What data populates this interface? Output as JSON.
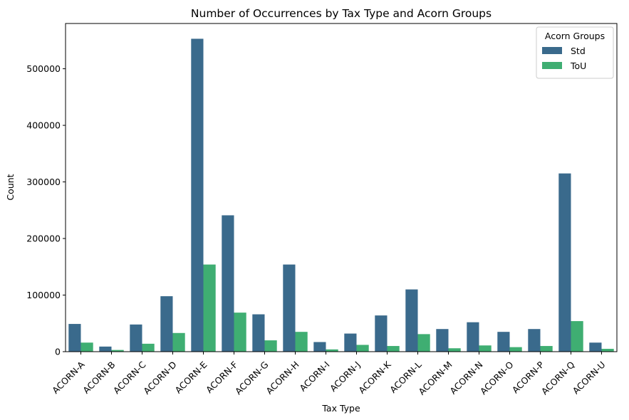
{
  "chart_data": {
    "type": "bar",
    "title": "Number of Occurrences by Tax Type and Acorn Groups",
    "xlabel": "Tax Type",
    "ylabel": "Count",
    "ylim": [
      0,
      580000
    ],
    "yticks": [
      0,
      100000,
      200000,
      300000,
      400000,
      500000
    ],
    "grid": false,
    "legend": {
      "title": "Acorn Groups",
      "placement": "top-right"
    },
    "categories": [
      "ACORN-A",
      "ACORN-B",
      "ACORN-C",
      "ACORN-D",
      "ACORN-E",
      "ACORN-F",
      "ACORN-G",
      "ACORN-H",
      "ACORN-I",
      "ACORN-J",
      "ACORN-K",
      "ACORN-L",
      "ACORN-M",
      "ACORN-N",
      "ACORN-O",
      "ACORN-P",
      "ACORN-Q",
      "ACORN-U"
    ],
    "series": [
      {
        "name": "Std",
        "color": "#3a6a8c",
        "values": [
          49000,
          9000,
          48000,
          98000,
          553000,
          241000,
          66000,
          154000,
          17000,
          32000,
          64000,
          110000,
          40000,
          52000,
          35000,
          40000,
          315000,
          16000
        ]
      },
      {
        "name": "ToU",
        "color": "#3fae72",
        "values": [
          16000,
          3000,
          14000,
          33000,
          154000,
          69000,
          20000,
          35000,
          4000,
          12000,
          10000,
          31000,
          6000,
          11000,
          8000,
          10000,
          54000,
          5000
        ]
      }
    ]
  }
}
